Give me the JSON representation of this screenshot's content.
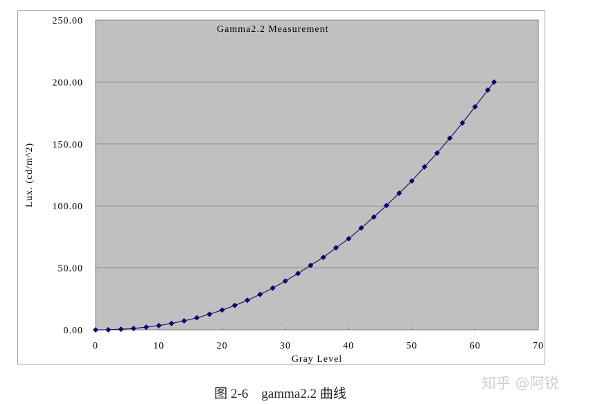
{
  "chart_data": {
    "type": "line",
    "title": "Gamma2.2 Measurement",
    "xlabel": "Gray Level",
    "ylabel": "Lux. (cd/m^2)",
    "xlim": [
      0,
      70
    ],
    "ylim": [
      0,
      250
    ],
    "x_ticks": [
      "0",
      "10",
      "20",
      "30",
      "40",
      "50",
      "60",
      "70"
    ],
    "y_ticks": [
      "0.00",
      "50.00",
      "100.00",
      "150.00",
      "200.00",
      "250.00"
    ],
    "grid": "horizontal",
    "legend": "none",
    "series": [
      {
        "name": "Gamma2.2",
        "color": "#000080",
        "marker": "diamond",
        "x": [
          0,
          2,
          4,
          6,
          8,
          10,
          12,
          14,
          16,
          18,
          20,
          22,
          24,
          26,
          28,
          30,
          32,
          34,
          36,
          38,
          40,
          42,
          44,
          46,
          48,
          50,
          52,
          54,
          56,
          58,
          60,
          62,
          63
        ],
        "y": [
          0.0,
          0.1,
          0.5,
          1.1,
          2.2,
          3.5,
          5.2,
          7.3,
          9.7,
          12.6,
          16.0,
          19.7,
          23.9,
          28.6,
          33.7,
          39.4,
          45.5,
          52.1,
          58.5,
          66.2,
          73.5,
          82.2,
          91.1,
          100.4,
          110.3,
          120.2,
          131.6,
          142.7,
          154.7,
          167.0,
          180.1,
          193.5,
          200.0
        ]
      }
    ]
  },
  "caption": "图 2-6　gamma2.2 曲线",
  "watermark": "知乎 @阿锐"
}
